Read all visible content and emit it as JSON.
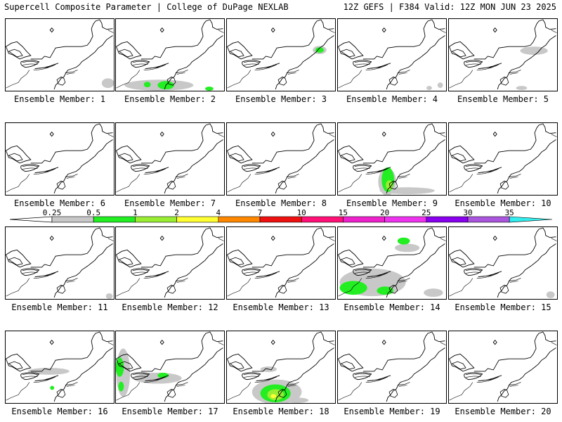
{
  "header": {
    "left": "Supercell Composite Parameter | College of DuPage NEXLAB",
    "right": "12Z GEFS | F384 Valid: 12Z MON JUN 23 2025"
  },
  "colorbar": {
    "labels": [
      "0.25",
      "0.5",
      "1",
      "2",
      "4",
      "7",
      "10",
      "15",
      "20",
      "25",
      "30",
      "35"
    ],
    "colors": [
      "#c8c8c8",
      "#22ee22",
      "#99ee33",
      "#ffff33",
      "#ff8800",
      "#ee1111",
      "#ff1177",
      "#ee22cc",
      "#ee33ee",
      "#8800ee",
      "#aa55dd",
      "#33eeee"
    ]
  },
  "panels": [
    {
      "label": "Ensemble Member: 1",
      "member": 1,
      "blobs": [
        {
          "x": 148,
          "y": 93,
          "rx": 9,
          "ry": 7,
          "c": 0
        }
      ]
    },
    {
      "label": "Ensemble Member: 2",
      "member": 2,
      "blobs": [
        {
          "x": 62,
          "y": 96,
          "rx": 50,
          "ry": 8,
          "c": 0
        },
        {
          "x": 72,
          "y": 96,
          "rx": 12,
          "ry": 6,
          "c": 1
        },
        {
          "x": 45,
          "y": 95,
          "rx": 5,
          "ry": 4,
          "c": 1
        },
        {
          "x": 135,
          "y": 101,
          "rx": 6,
          "ry": 3,
          "c": 1
        }
      ]
    },
    {
      "label": "Ensemble Member: 3",
      "member": 3,
      "blobs": [
        {
          "x": 134,
          "y": 45,
          "rx": 10,
          "ry": 6,
          "c": 0
        },
        {
          "x": 134,
          "y": 45,
          "rx": 6,
          "ry": 4,
          "c": 1
        }
      ]
    },
    {
      "label": "Ensemble Member: 4",
      "member": 4,
      "blobs": [
        {
          "x": 132,
          "y": 100,
          "rx": 4,
          "ry": 3,
          "c": 0
        },
        {
          "x": 148,
          "y": 96,
          "rx": 4,
          "ry": 4,
          "c": 0
        }
      ]
    },
    {
      "label": "Ensemble Member: 5",
      "member": 5,
      "blobs": [
        {
          "x": 123,
          "y": 46,
          "rx": 20,
          "ry": 6,
          "c": 0
        },
        {
          "x": 105,
          "y": 100,
          "rx": 8,
          "ry": 3,
          "c": 0
        }
      ]
    },
    {
      "label": "Ensemble Member: 6",
      "member": 6,
      "blobs": []
    },
    {
      "label": "Ensemble Member: 7",
      "member": 7,
      "blobs": []
    },
    {
      "label": "Ensemble Member: 8",
      "member": 8,
      "blobs": []
    },
    {
      "label": "Ensemble Member: 9",
      "member": 9,
      "blobs": [
        {
          "x": 71,
          "y": 85,
          "rx": 13,
          "ry": 20,
          "c": 0
        },
        {
          "x": 100,
          "y": 98,
          "rx": 40,
          "ry": 5,
          "c": 0
        },
        {
          "x": 72,
          "y": 82,
          "rx": 9,
          "ry": 18,
          "c": 1
        },
        {
          "x": 74,
          "y": 90,
          "rx": 5,
          "ry": 7,
          "c": 2
        }
      ]
    },
    {
      "label": "Ensemble Member: 10",
      "member": 10,
      "blobs": []
    },
    {
      "label": "Ensemble Member: 11",
      "member": 11,
      "blobs": [
        {
          "x": 150,
          "y": 100,
          "rx": 5,
          "ry": 4,
          "c": 0
        }
      ]
    },
    {
      "label": "Ensemble Member: 12",
      "member": 12,
      "blobs": []
    },
    {
      "label": "Ensemble Member: 13",
      "member": 13,
      "blobs": []
    },
    {
      "label": "Ensemble Member: 14",
      "member": 14,
      "blobs": [
        {
          "x": 50,
          "y": 80,
          "rx": 48,
          "ry": 20,
          "c": 0
        },
        {
          "x": 100,
          "y": 30,
          "rx": 18,
          "ry": 6,
          "c": 0
        },
        {
          "x": 138,
          "y": 95,
          "rx": 14,
          "ry": 6,
          "c": 0
        },
        {
          "x": 22,
          "y": 88,
          "rx": 20,
          "ry": 10,
          "c": 1
        },
        {
          "x": 95,
          "y": 20,
          "rx": 9,
          "ry": 5,
          "c": 1
        },
        {
          "x": 68,
          "y": 92,
          "rx": 12,
          "ry": 6,
          "c": 1
        }
      ]
    },
    {
      "label": "Ensemble Member: 15",
      "member": 15,
      "blobs": [
        {
          "x": 147,
          "y": 98,
          "rx": 6,
          "ry": 5,
          "c": 0
        }
      ]
    },
    {
      "label": "Ensemble Member: 16",
      "member": 16,
      "blobs": [
        {
          "x": 62,
          "y": 58,
          "rx": 30,
          "ry": 5,
          "c": 0
        },
        {
          "x": 80,
          "y": 58,
          "rx": 7,
          "ry": 4,
          "c": 0
        },
        {
          "x": 67,
          "y": 82,
          "rx": 3,
          "ry": 3,
          "c": 1
        }
      ]
    },
    {
      "label": "Ensemble Member: 17",
      "member": 17,
      "blobs": [
        {
          "x": 10,
          "y": 60,
          "rx": 10,
          "ry": 35,
          "c": 0
        },
        {
          "x": 60,
          "y": 68,
          "rx": 35,
          "ry": 8,
          "c": 0
        },
        {
          "x": 5,
          "y": 52,
          "rx": 6,
          "ry": 14,
          "c": 1
        },
        {
          "x": 7,
          "y": 80,
          "rx": 4,
          "ry": 7,
          "c": 1
        },
        {
          "x": 68,
          "y": 64,
          "rx": 8,
          "ry": 4,
          "c": 1
        }
      ]
    },
    {
      "label": "Ensemble Member: 18",
      "member": 18,
      "blobs": [
        {
          "x": 72,
          "y": 88,
          "rx": 36,
          "ry": 18,
          "c": 0
        },
        {
          "x": 60,
          "y": 55,
          "rx": 12,
          "ry": 4,
          "c": 0
        },
        {
          "x": 100,
          "y": 100,
          "rx": 18,
          "ry": 4,
          "c": 0
        },
        {
          "x": 70,
          "y": 90,
          "rx": 22,
          "ry": 13,
          "c": 1
        },
        {
          "x": 70,
          "y": 92,
          "rx": 12,
          "ry": 8,
          "c": 2
        },
        {
          "x": 67,
          "y": 94,
          "rx": 4,
          "ry": 3,
          "c": 3
        }
      ]
    },
    {
      "label": "Ensemble Member: 19",
      "member": 19,
      "blobs": []
    },
    {
      "label": "Ensemble Member: 20",
      "member": 20,
      "blobs": []
    }
  ]
}
